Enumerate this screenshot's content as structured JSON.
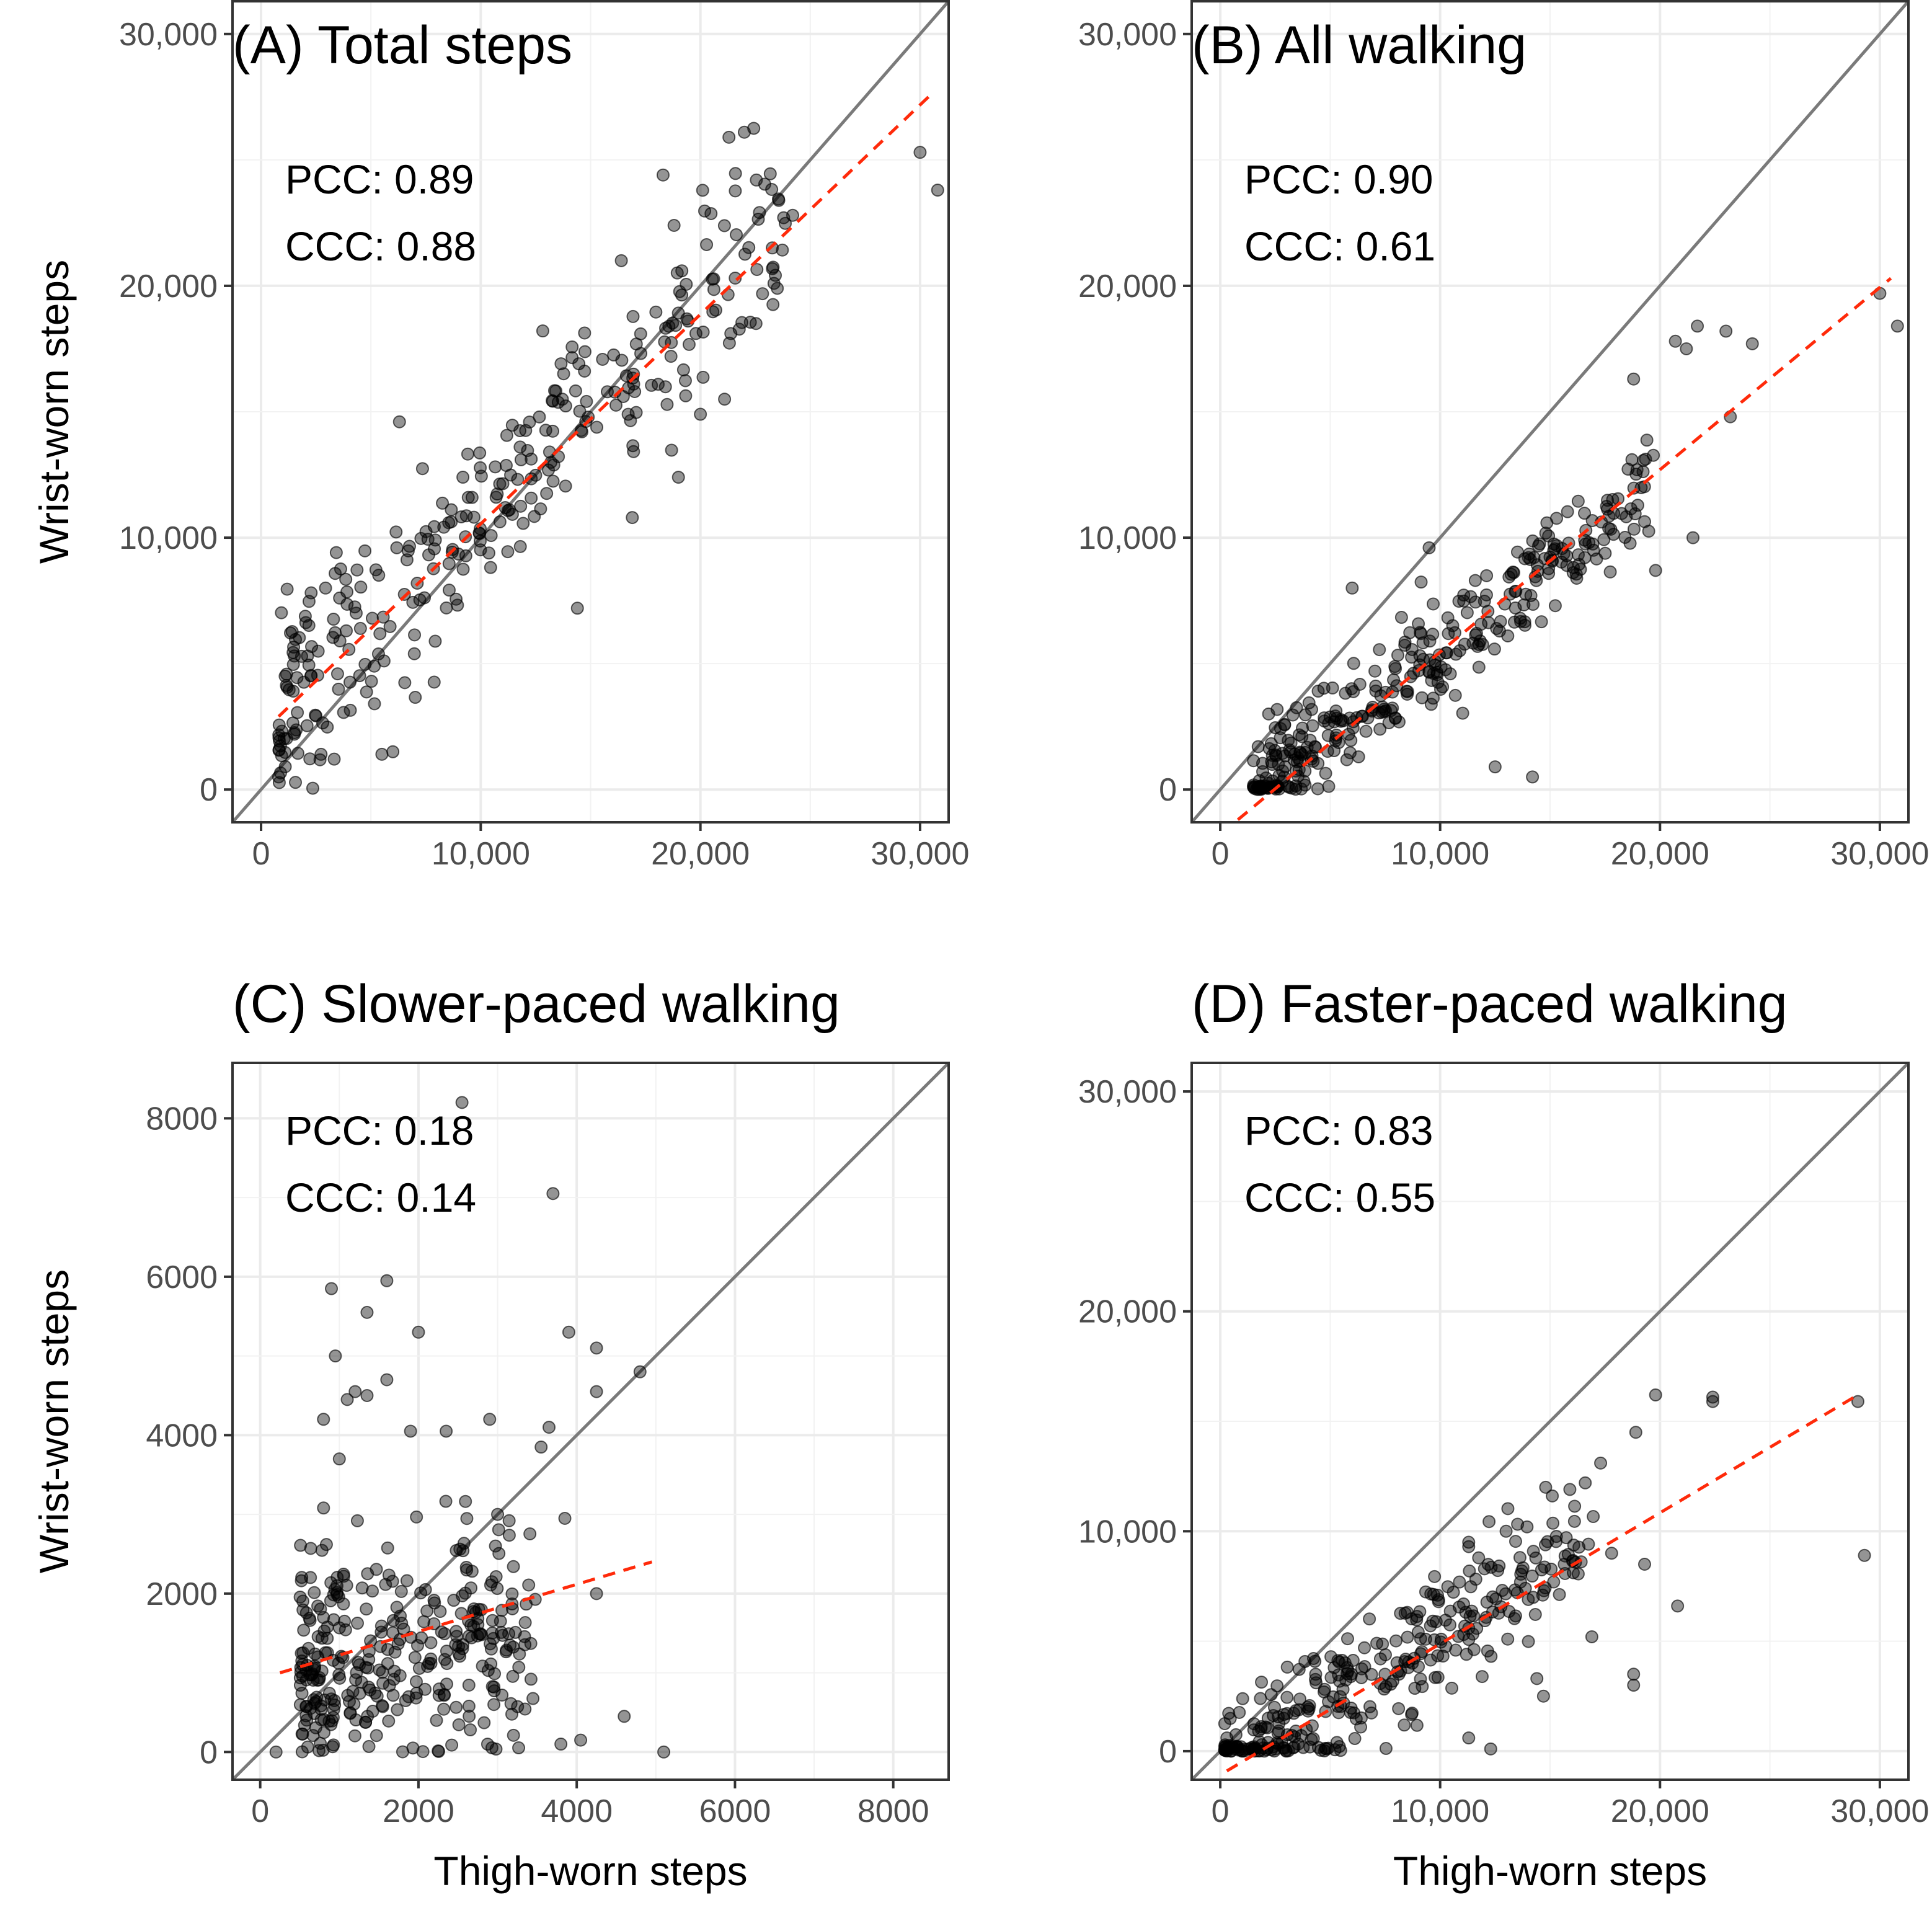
{
  "chart_data": [
    {
      "type": "scatter",
      "panel_id": "A",
      "title": "(A) Total steps",
      "xlabel": "",
      "ylabel": "Wrist-worn steps",
      "xlim": [
        -1300,
        31300
      ],
      "ylim": [
        -1300,
        31300
      ],
      "xticks": [
        0,
        10000,
        20000,
        30000
      ],
      "xtick_labels": [
        "0",
        "10,000",
        "20,000",
        "30,000"
      ],
      "yticks": [
        0,
        10000,
        20000,
        30000
      ],
      "ytick_labels": [
        "0",
        "10,000",
        "20,000",
        "30,000"
      ],
      "grid": true,
      "annotations": {
        "pcc": "PCC: 0.89",
        "ccc": "CCC: 0.88"
      },
      "identity_line": true,
      "fit_line": {
        "x": [
          800,
          30500
        ],
        "y": [
          2900,
          27600
        ],
        "color": "#ff2a0a",
        "style": "dashed"
      },
      "cloud": {
        "n": 320,
        "x_range": [
          800,
          24000
        ],
        "slope": 0.85,
        "intercept": 2400,
        "sd": 1900,
        "y_min": 0
      },
      "points": [
        {
          "x": 30000,
          "y": 25300
        },
        {
          "x": 30800,
          "y": 23800
        },
        {
          "x": 21300,
          "y": 25900
        },
        {
          "x": 22000,
          "y": 26100
        },
        {
          "x": 18300,
          "y": 24400
        },
        {
          "x": 18800,
          "y": 22400
        },
        {
          "x": 24200,
          "y": 22800
        },
        {
          "x": 23500,
          "y": 19900
        },
        {
          "x": 21100,
          "y": 15500
        },
        {
          "x": 20000,
          "y": 14900
        },
        {
          "x": 19000,
          "y": 12400
        },
        {
          "x": 16900,
          "y": 10800
        },
        {
          "x": 14400,
          "y": 7200
        },
        {
          "x": 5500,
          "y": 1400
        },
        {
          "x": 6000,
          "y": 1500
        },
        {
          "x": 800,
          "y": 500
        },
        {
          "x": 6300,
          "y": 14600
        },
        {
          "x": 16400,
          "y": 21000
        }
      ]
    },
    {
      "type": "scatter",
      "panel_id": "B",
      "title": "(B) All walking",
      "xlabel": "",
      "ylabel": "",
      "xlim": [
        -1300,
        31300
      ],
      "ylim": [
        -1300,
        31300
      ],
      "xticks": [
        0,
        10000,
        20000,
        30000
      ],
      "xtick_labels": [
        "0",
        "10,000",
        "20,000",
        "30,000"
      ],
      "yticks": [
        0,
        10000,
        20000,
        30000
      ],
      "ytick_labels": [
        "0",
        "10,000",
        "20,000",
        "30,000"
      ],
      "grid": true,
      "annotations": {
        "pcc": "PCC: 0.90",
        "ccc": "CCC: 0.61"
      },
      "identity_line": true,
      "fit_line": {
        "x": [
          800,
          30500
        ],
        "y": [
          -1200,
          20300
        ],
        "color": "#ff2a0a",
        "style": "dashed"
      },
      "cloud": {
        "n": 360,
        "x_range": [
          1500,
          20000
        ],
        "slope": 0.68,
        "intercept": -1400,
        "sd": 1100,
        "y_min": 0
      },
      "points": [
        {
          "x": 30000,
          "y": 19700
        },
        {
          "x": 30800,
          "y": 18400
        },
        {
          "x": 21700,
          "y": 18400
        },
        {
          "x": 20700,
          "y": 17800
        },
        {
          "x": 23000,
          "y": 18200
        },
        {
          "x": 24200,
          "y": 17700
        },
        {
          "x": 21200,
          "y": 17500
        },
        {
          "x": 18800,
          "y": 16300
        },
        {
          "x": 19800,
          "y": 8700
        },
        {
          "x": 21500,
          "y": 10000
        },
        {
          "x": 14200,
          "y": 500
        },
        {
          "x": 6000,
          "y": 8000
        },
        {
          "x": 9500,
          "y": 9600
        },
        {
          "x": 2200,
          "y": 3000
        },
        {
          "x": 23200,
          "y": 14800
        },
        {
          "x": 12500,
          "y": 900
        }
      ]
    },
    {
      "type": "scatter",
      "panel_id": "C",
      "title": "(C) Slower-paced walking",
      "xlabel": "Thigh-worn steps",
      "ylabel": "Wrist-worn steps",
      "xlim": [
        -350,
        8700
      ],
      "ylim": [
        -350,
        8700
      ],
      "xticks": [
        0,
        2000,
        4000,
        6000,
        8000
      ],
      "xtick_labels": [
        "0",
        "2000",
        "4000",
        "6000",
        "8000"
      ],
      "yticks": [
        0,
        2000,
        4000,
        6000,
        8000
      ],
      "ytick_labels": [
        "0",
        "2000",
        "4000",
        "6000",
        "8000"
      ],
      "grid": true,
      "annotations": {
        "pcc": "PCC: 0.18",
        "ccc": "CCC: 0.14"
      },
      "identity_line": true,
      "fit_line": {
        "x": [
          250,
          4950
        ],
        "y": [
          1000,
          2400
        ],
        "color": "#ff2a0a",
        "style": "dashed"
      },
      "cloud": {
        "n": 330,
        "x_range": [
          500,
          3500
        ],
        "slope": 0.15,
        "intercept": 900,
        "sd": 750,
        "y_min": 0
      },
      "points": [
        {
          "x": 2550,
          "y": 8200
        },
        {
          "x": 3700,
          "y": 7050
        },
        {
          "x": 1600,
          "y": 5950
        },
        {
          "x": 900,
          "y": 5850
        },
        {
          "x": 1350,
          "y": 5550
        },
        {
          "x": 2000,
          "y": 5300
        },
        {
          "x": 3900,
          "y": 5300
        },
        {
          "x": 4250,
          "y": 5100
        },
        {
          "x": 950,
          "y": 5000
        },
        {
          "x": 4800,
          "y": 4800
        },
        {
          "x": 1600,
          "y": 4700
        },
        {
          "x": 1200,
          "y": 4550
        },
        {
          "x": 1350,
          "y": 4500
        },
        {
          "x": 4250,
          "y": 4550
        },
        {
          "x": 1100,
          "y": 4450
        },
        {
          "x": 3650,
          "y": 4100
        },
        {
          "x": 2350,
          "y": 4050
        },
        {
          "x": 2900,
          "y": 4200
        },
        {
          "x": 800,
          "y": 4200
        },
        {
          "x": 5100,
          "y": 0
        },
        {
          "x": 4600,
          "y": 450
        },
        {
          "x": 4050,
          "y": 150
        },
        {
          "x": 3800,
          "y": 100
        },
        {
          "x": 4250,
          "y": 2000
        },
        {
          "x": 3850,
          "y": 2950
        },
        {
          "x": 1000,
          "y": 3700
        },
        {
          "x": 1900,
          "y": 4050
        },
        {
          "x": 3550,
          "y": 3850
        },
        {
          "x": 3000,
          "y": 3000
        },
        {
          "x": 200,
          "y": 0
        }
      ]
    },
    {
      "type": "scatter",
      "panel_id": "D",
      "title": "(D) Faster-paced walking",
      "xlabel": "Thigh-worn steps",
      "ylabel": "",
      "xlim": [
        -1300,
        31300
      ],
      "ylim": [
        -1300,
        31300
      ],
      "xticks": [
        0,
        10000,
        20000,
        30000
      ],
      "xtick_labels": [
        "0",
        "10,000",
        "20,000",
        "30,000"
      ],
      "yticks": [
        0,
        10000,
        20000,
        30000
      ],
      "ytick_labels": [
        "0",
        "10,000",
        "20,000",
        "30,000"
      ],
      "grid": true,
      "annotations": {
        "pcc": "PCC: 0.83",
        "ccc": "CCC: 0.55"
      },
      "identity_line": true,
      "fit_line": {
        "x": [
          300,
          29000
        ],
        "y": [
          -900,
          16200
        ],
        "color": "#ff2a0a",
        "style": "dashed"
      },
      "cloud": {
        "n": 330,
        "x_range": [
          200,
          17000
        ],
        "slope": 0.62,
        "intercept": -1000,
        "sd": 1500,
        "y_min": 0
      },
      "points": [
        {
          "x": 29000,
          "y": 15900
        },
        {
          "x": 29300,
          "y": 8900
        },
        {
          "x": 22400,
          "y": 16100
        },
        {
          "x": 22400,
          "y": 15900
        },
        {
          "x": 19800,
          "y": 16200
        },
        {
          "x": 18900,
          "y": 14500
        },
        {
          "x": 19300,
          "y": 8500
        },
        {
          "x": 20800,
          "y": 6600
        },
        {
          "x": 18800,
          "y": 3500
        },
        {
          "x": 18800,
          "y": 3000
        },
        {
          "x": 17300,
          "y": 13100
        },
        {
          "x": 16900,
          "y": 5200
        },
        {
          "x": 17800,
          "y": 9000
        },
        {
          "x": 16600,
          "y": 12200
        },
        {
          "x": 15900,
          "y": 11900
        },
        {
          "x": 14800,
          "y": 12000
        },
        {
          "x": 12300,
          "y": 100
        },
        {
          "x": 11300,
          "y": 600
        },
        {
          "x": 11300,
          "y": 9300
        },
        {
          "x": 11300,
          "y": 9500
        },
        {
          "x": 13000,
          "y": 10000
        },
        {
          "x": 14700,
          "y": 2500
        },
        {
          "x": 14400,
          "y": 3300
        },
        {
          "x": 300,
          "y": 600
        },
        {
          "x": 500,
          "y": 0
        },
        {
          "x": 1000,
          "y": 0
        },
        {
          "x": 1500,
          "y": 100
        },
        {
          "x": 2000,
          "y": 0
        },
        {
          "x": 2500,
          "y": 100
        },
        {
          "x": 3000,
          "y": 0
        }
      ]
    }
  ]
}
